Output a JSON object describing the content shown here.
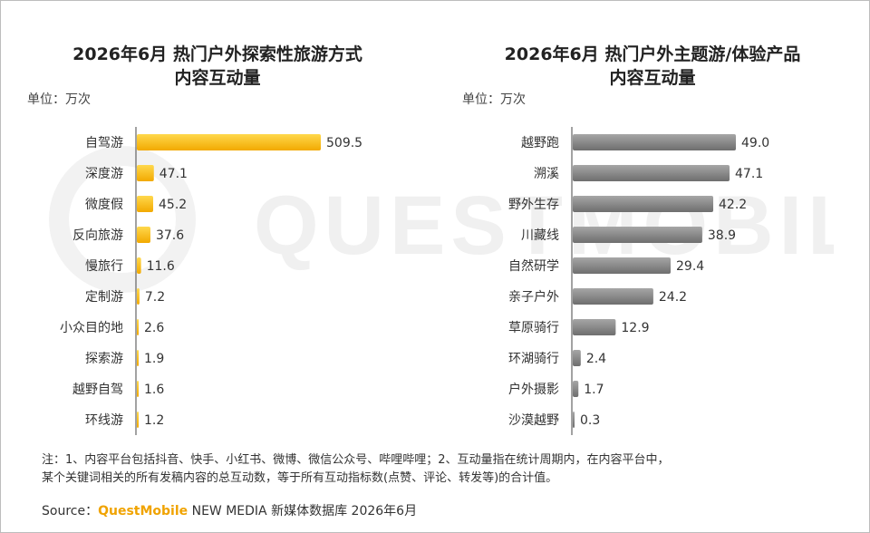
{
  "footer": {
    "note_line1": "注：1、内容平台包括抖音、快手、小红书、微博、微信公众号、哔哩哔哩；2、互动量指在统计周期内，在内容平台中，",
    "note_line2": "某个关键词相关的所有发稿内容的总互动数，等于所有互动指标数(点赞、评论、转发等)的合计值。",
    "source_label": "Source：",
    "source_brand": "QuestMobile",
    "source_rest": "NEW MEDIA 新媒体数据库 2026年6月"
  },
  "watermark": {
    "text": "QUESTMOBILE"
  },
  "colors": {
    "left_bar": "#f7b500",
    "right_bar": "#7f7f7f",
    "axis": "#444444"
  },
  "chart_data": [
    {
      "type": "bar",
      "orientation": "horizontal",
      "title": "2026年6月 热门户外探索性旅游方式",
      "title_line2": "内容互动量",
      "unit": "单位：万次",
      "categories": [
        "自驾游",
        "深度游",
        "微度假",
        "反向旅游",
        "慢旅行",
        "定制游",
        "小众目的地",
        "探索游",
        "越野自驾",
        "环线游"
      ],
      "values": [
        509.5,
        47.1,
        45.2,
        37.6,
        11.6,
        7.2,
        2.6,
        1.9,
        1.6,
        1.2
      ],
      "value_labels": [
        "509.5",
        "47.1",
        "45.2",
        "37.6",
        "11.6",
        "7.2",
        "2.6",
        "1.9",
        "1.6",
        "1.2"
      ],
      "xlim": [
        0,
        509.5
      ],
      "color": "#f7b500"
    },
    {
      "type": "bar",
      "orientation": "horizontal",
      "title": "2026年6月 热门户外主题游/体验产品",
      "title_line2": "内容互动量",
      "unit": "单位：万次",
      "categories": [
        "越野跑",
        "溯溪",
        "野外生存",
        "川藏线",
        "自然研学",
        "亲子户外",
        "草原骑行",
        "环湖骑行",
        "户外摄影",
        "沙漠越野"
      ],
      "values": [
        49.0,
        47.1,
        42.2,
        38.9,
        29.4,
        24.2,
        12.9,
        2.4,
        1.7,
        0.3
      ],
      "value_labels": [
        "49.0",
        "47.1",
        "42.2",
        "38.9",
        "29.4",
        "24.2",
        "12.9",
        "2.4",
        "1.7",
        "0.3"
      ],
      "xlim": [
        0,
        49.0
      ],
      "color": "#7f7f7f"
    }
  ]
}
